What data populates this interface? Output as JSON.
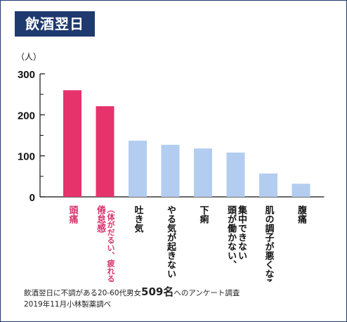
{
  "title": "飲酒翌日",
  "chart_data": {
    "type": "bar",
    "title": "飲酒翌日",
    "ylabel": "（人）",
    "xlabel": "",
    "ylim": [
      0,
      300
    ],
    "yticks": [
      0,
      100,
      200,
      300
    ],
    "grid": false,
    "categories": [
      [
        "頭痛"
      ],
      [
        "倦怠感",
        "（体がだるい、疲れる）"
      ],
      [
        "吐き気"
      ],
      [
        "やる気が起きない"
      ],
      [
        "下痢"
      ],
      [
        "頭が働かない、",
        "集中できない"
      ],
      [
        "肌の調子が悪くなる"
      ],
      [
        "腹痛"
      ]
    ],
    "values": [
      260,
      221,
      137,
      127,
      118,
      108,
      57,
      32
    ],
    "highlight": [
      true,
      true,
      false,
      false,
      false,
      false,
      false,
      false
    ],
    "colors": {
      "highlight": "#e6336b",
      "normal": "#b3cdf0",
      "axis": "#111111",
      "highlight_text": "#d6336b",
      "normal_text": "#111111"
    }
  },
  "footnote": {
    "line1_before": "飲酒翌日に不調がある20-60代男女",
    "line1_big": "509名",
    "line1_after": "へのアンケート調査",
    "line2": "2019年11月小林製薬調べ"
  }
}
